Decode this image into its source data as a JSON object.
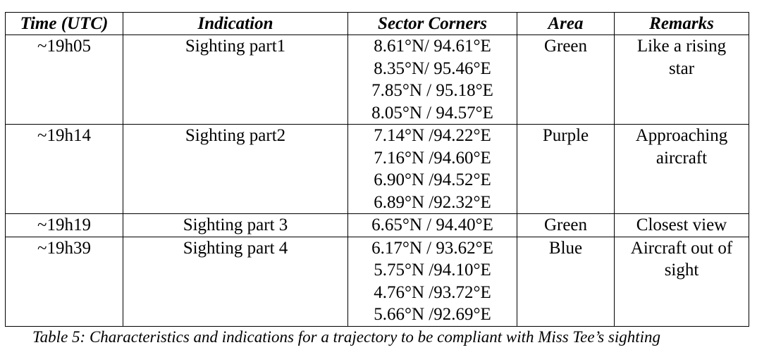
{
  "table": {
    "headers": [
      "Time (UTC)",
      "Indication",
      "Sector Corners",
      "Area",
      "Remarks"
    ],
    "rows": [
      {
        "time": "~19h05",
        "indication": "Sighting part1",
        "corners": [
          "8.61°N/ 94.61°E",
          "8.35°N/ 95.46°E",
          "7.85°N / 95.18°E",
          "8.05°N / 94.57°E"
        ],
        "area": "Green",
        "remarks": [
          "Like a rising",
          "star"
        ]
      },
      {
        "time": "~19h14",
        "indication": "Sighting part2",
        "corners": [
          "7.14°N /94.22°E",
          "7.16°N /94.60°E",
          "6.90°N /94.52°E",
          "6.89°N /92.32°E"
        ],
        "area": "Purple",
        "remarks": [
          "Approaching",
          "aircraft"
        ]
      },
      {
        "time": "~19h19",
        "indication": "Sighting part 3",
        "corners": [
          "6.65°N / 94.40°E"
        ],
        "area": "Green",
        "remarks": [
          "Closest view"
        ]
      },
      {
        "time": "~19h39",
        "indication": "Sighting part 4",
        "corners": [
          "6.17°N / 93.62°E",
          "5.75°N /94.10°E",
          "4.76°N /93.72°E",
          "5.66°N /92.69°E"
        ],
        "area": "Blue",
        "remarks": [
          "Aircraft out of",
          "sight"
        ]
      }
    ]
  },
  "caption": "Table 5: Characteristics and indications for a trajectory to be compliant with Miss Tee’s sighting"
}
